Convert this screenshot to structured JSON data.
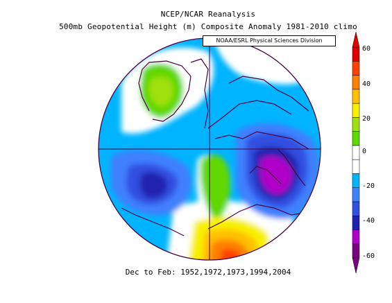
{
  "title_line1": "NCEP/NCAR Reanalysis",
  "title_line2": "500mb Geopotential Height (m) Composite Anomaly 1981-2010 climo",
  "credit": "NOAA/ESRL Physical Sciences Division",
  "footer": "Dec to Feb: 1952,1972,1973,1994,2004",
  "colorbar": {
    "min": -60,
    "max": 60,
    "tick_labels": [
      "60",
      "40",
      "20",
      "0",
      "-20",
      "-40",
      "-60"
    ],
    "colors_low_to_high": [
      "#7a0080",
      "#b000c8",
      "#2020b0",
      "#3050e0",
      "#4080ff",
      "#00b4ff",
      "#ffffff",
      "#ffffff",
      "#60d800",
      "#a0e010",
      "#f8f000",
      "#ffc000",
      "#ff8000",
      "#ff4000",
      "#e00000"
    ]
  },
  "map": {
    "projection": "north polar stereographic",
    "features": [
      "coastlines",
      "country borders"
    ]
  }
}
